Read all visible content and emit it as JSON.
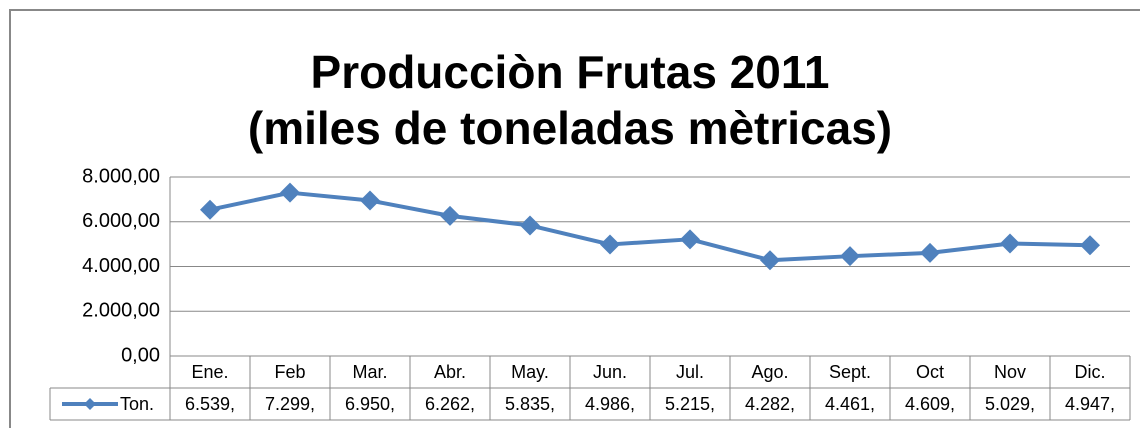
{
  "chart_data": {
    "type": "line",
    "title": "Producciòn Frutas 2011",
    "subtitle": "(miles de toneladas mètricas)",
    "categories": [
      "Ene.",
      "Feb",
      "Mar.",
      "Abr.",
      "May.",
      "Jun.",
      "Jul.",
      "Ago.",
      "Sept.",
      "Oct",
      "Nov",
      "Dic."
    ],
    "series": [
      {
        "name": "Ton.",
        "color": "#4f81bd",
        "values": [
          6539,
          7299,
          6950,
          6262,
          5835,
          4986,
          5215,
          4282,
          4461,
          4609,
          5029,
          4947
        ],
        "value_labels": [
          "6.539,",
          "7.299,",
          "6.950,",
          "6.262,",
          "5.835,",
          "4.986,",
          "5.215,",
          "4.282,",
          "4.461,",
          "4.609,",
          "5.029,",
          "4.947,"
        ]
      }
    ],
    "ylim": [
      0,
      8000
    ],
    "yticks": [
      {
        "value": 0,
        "label": "0,00"
      },
      {
        "value": 2000,
        "label": "2.000,00"
      },
      {
        "value": 4000,
        "label": "4.000,00"
      },
      {
        "value": 6000,
        "label": "6.000,00"
      },
      {
        "value": 8000,
        "label": "8.000,00"
      }
    ],
    "grid": true
  }
}
